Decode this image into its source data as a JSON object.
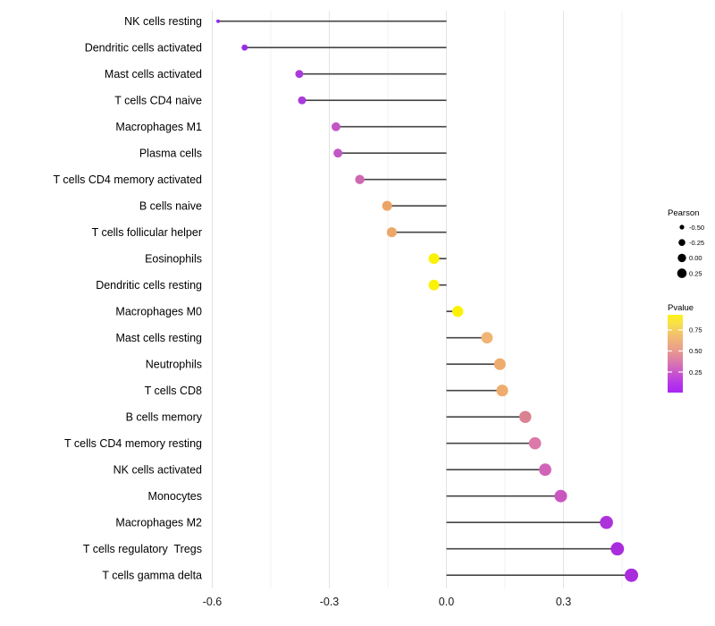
{
  "chart_data": {
    "type": "scatter",
    "style": "horizontal-lollipop",
    "title": "",
    "xlabel": "",
    "ylabel": "",
    "categories": [
      "NK cells resting",
      "Dendritic cells activated",
      "Mast cells activated",
      "T cells CD4 naive",
      "Macrophages M1",
      "Plasma cells",
      "T cells CD4 memory activated",
      "B cells naive",
      "T cells follicular helper",
      "Eosinophils",
      "Dendritic cells resting",
      "Macrophages M0",
      "Mast cells resting",
      "Neutrophils",
      "T cells CD8",
      "B cells memory",
      "T cells CD4 memory resting",
      "NK cells activated",
      "Monocytes",
      "Macrophages M2",
      "T cells regulatory  Tregs",
      "T cells gamma delta"
    ],
    "series": [
      {
        "name": "Pearson",
        "values": [
          -0.585,
          -0.517,
          -0.377,
          -0.37,
          -0.283,
          -0.278,
          -0.222,
          -0.152,
          -0.14,
          -0.032,
          -0.032,
          0.029,
          0.104,
          0.137,
          0.143,
          0.202,
          0.227,
          0.253,
          0.293,
          0.41,
          0.438,
          0.474
        ]
      }
    ],
    "point_colors": [
      "#8F29E5",
      "#9A2BE6",
      "#A93BDB",
      "#A93BDB",
      "#C156C6",
      "#C156C6",
      "#CE68B1",
      "#ECA466",
      "#EDA76B",
      "#FBF104",
      "#FBF104",
      "#FBF104",
      "#F0B575",
      "#EEAC6E",
      "#EEAC6E",
      "#DB8292",
      "#DB79A9",
      "#D264B8",
      "#CA57BF",
      "#AC33DA",
      "#A92DDC",
      "#A82BDE"
    ],
    "pvalue_approx": [
      0.02,
      0.04,
      0.1,
      0.1,
      0.2,
      0.2,
      0.3,
      0.55,
      0.55,
      0.9,
      0.9,
      0.9,
      0.6,
      0.58,
      0.58,
      0.4,
      0.33,
      0.28,
      0.22,
      0.09,
      0.07,
      0.06
    ],
    "xlim": [
      -0.64,
      0.53
    ],
    "x_major_ticks": [
      -0.6,
      -0.3,
      0.0,
      0.3
    ],
    "x_tick_labels": [
      "-0.6",
      "-0.3",
      "0.0",
      "0.3"
    ],
    "x_minor_ticks": [
      -0.45,
      -0.15,
      0.15,
      0.45
    ],
    "grid": "vertical-only",
    "legend_position": "right",
    "size_legend": {
      "title": "Pearson",
      "labels": [
        "-0.50",
        "-0.25",
        "0.00",
        "0.25"
      ],
      "values": [
        -0.5,
        -0.25,
        0.0,
        0.25
      ]
    },
    "color_legend": {
      "title": "Pvalue",
      "labels": [
        "0.75",
        "0.50",
        "0.25"
      ],
      "values": [
        0.75,
        0.5,
        0.25
      ],
      "bar_value_top": 0.93,
      "bar_value_bottom": 0.005,
      "gradient_stops": [
        {
          "offset": 0.0,
          "color": "#FCF318"
        },
        {
          "offset": 0.12,
          "color": "#F8DF4D"
        },
        {
          "offset": 0.28,
          "color": "#F1BC72"
        },
        {
          "offset": 0.42,
          "color": "#EBA287"
        },
        {
          "offset": 0.55,
          "color": "#E0879F"
        },
        {
          "offset": 0.68,
          "color": "#D167BE"
        },
        {
          "offset": 0.8,
          "color": "#C248D8"
        },
        {
          "offset": 0.9,
          "color": "#B233EC"
        },
        {
          "offset": 1.0,
          "color": "#AA26F2"
        }
      ]
    }
  },
  "colors": {
    "background": "#FFFFFF",
    "stem": "#454545",
    "grid_major": "#E4E4E4",
    "grid_minor": "#F0F0F0",
    "axis_text": "#1A1A1A",
    "legend_dot": "#000000"
  }
}
